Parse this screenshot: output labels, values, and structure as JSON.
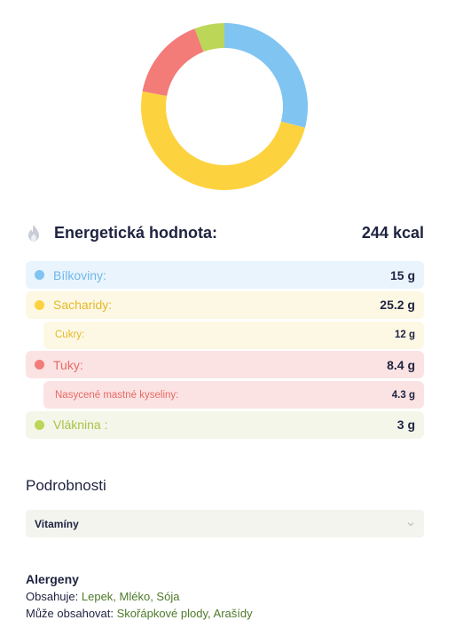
{
  "chart_data": {
    "type": "pie",
    "donut": true,
    "slices": [
      {
        "name": "Bílkoviny",
        "value": 15,
        "color": "#80c4f2"
      },
      {
        "name": "Sacharidy",
        "value": 25.2,
        "color": "#fdd23f"
      },
      {
        "name": "Tuky",
        "value": 8.4,
        "color": "#f37b78"
      },
      {
        "name": "Vláknina",
        "value": 3,
        "color": "#bcd658"
      }
    ]
  },
  "energy": {
    "icon": "flame-icon",
    "label": "Energetická hodnota:",
    "value": "244 kcal"
  },
  "nutrients": [
    {
      "label": "Bílkoviny:",
      "value": "15 g",
      "bg": "#e9f4fd",
      "text_color": "#6fb7ea",
      "dot": "#80c4f2",
      "sub": false
    },
    {
      "label": "Sacharidy:",
      "value": "25.2 g",
      "bg": "#fdf8e4",
      "text_color": "#e4b92a",
      "dot": "#fdd23f",
      "sub": false
    },
    {
      "label": "Cukry:",
      "value": "12 g",
      "bg": "#fdf8e4",
      "text_color": "#e4b92a",
      "dot": null,
      "sub": true
    },
    {
      "label": "Tuky:",
      "value": "8.4 g",
      "bg": "#fce3e3",
      "text_color": "#e56a66",
      "dot": "#f37b78",
      "sub": false
    },
    {
      "label": "Nasycené mastné kyseliny:",
      "value": "4.3 g",
      "bg": "#fce3e3",
      "text_color": "#e56a66",
      "dot": null,
      "sub": true
    },
    {
      "label": "Vláknina :",
      "value": "3 g",
      "bg": "#f3f6e8",
      "text_color": "#a9c24a",
      "dot": "#bcd658",
      "sub": false
    }
  ],
  "details": {
    "title": "Podrobnosti",
    "select_value": "Vitamíny",
    "select_icon": "chevron-down-icon"
  },
  "allergens": {
    "title": "Alergeny",
    "contains_label": "Obsahuje:",
    "contains_value": "Lepek, Mléko, Sója",
    "may_contain_label": "Může obsahovat:",
    "may_contain_value": "Skořápkové plody, Arašídy"
  }
}
